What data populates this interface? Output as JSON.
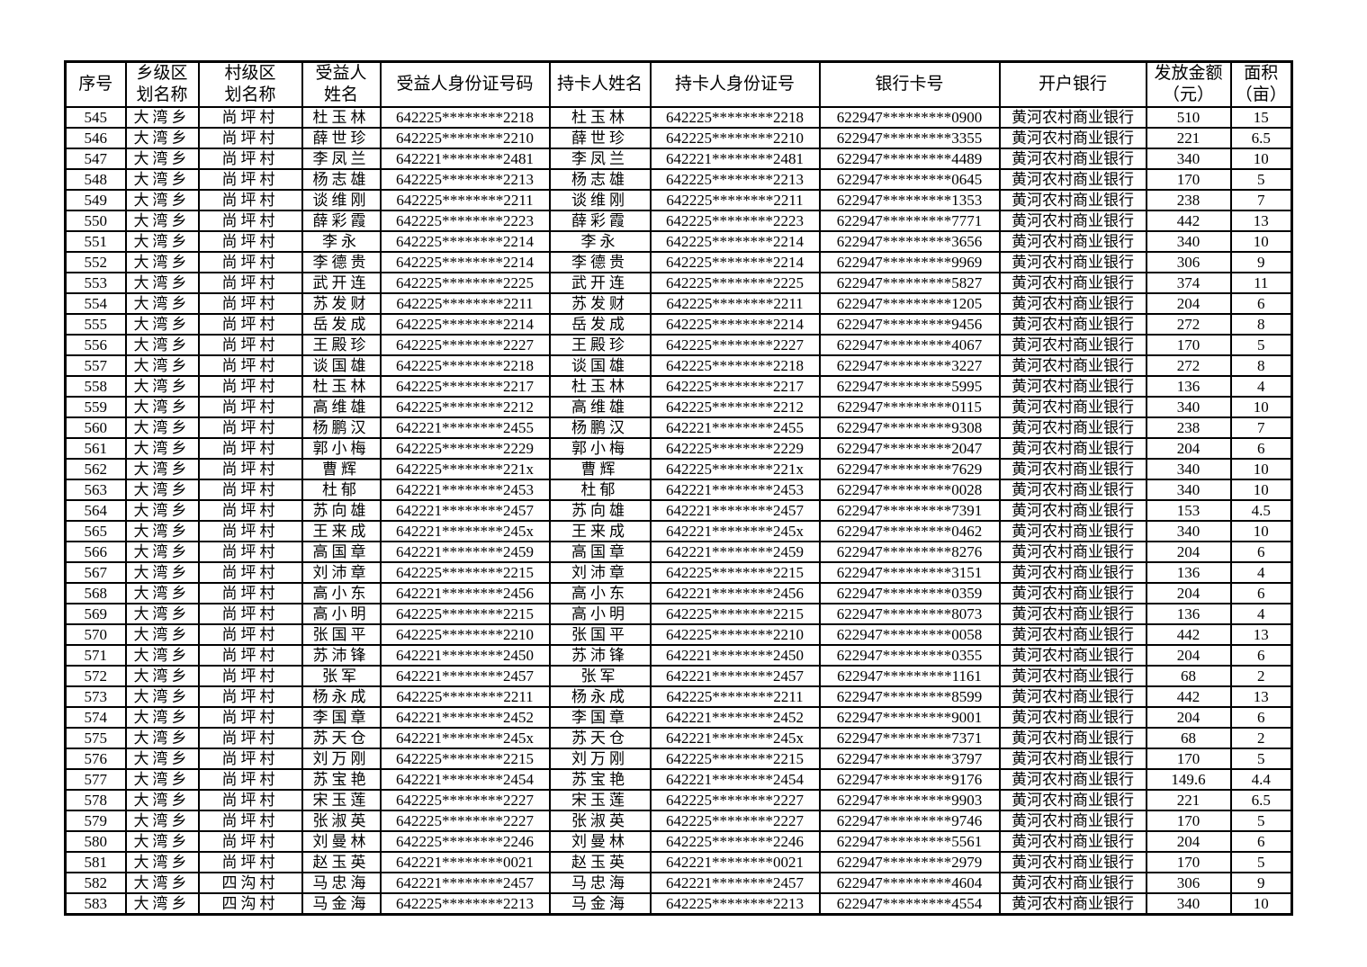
{
  "page": {
    "background": "#ffffff",
    "border_color": "#000000"
  },
  "table": {
    "columns": [
      {
        "key": "serial",
        "label": "序号"
      },
      {
        "key": "township",
        "label": "乡级区\n划名称"
      },
      {
        "key": "village",
        "label": "村级区\n划名称"
      },
      {
        "key": "beneficiary-name",
        "label": "受益人\n姓名"
      },
      {
        "key": "beneficiary-id",
        "label": "受益人身份证号码"
      },
      {
        "key": "cardholder-name",
        "label": "持卡人姓名"
      },
      {
        "key": "cardholder-id",
        "label": "持卡人身份证号"
      },
      {
        "key": "bank-card",
        "label": "银行卡号"
      },
      {
        "key": "bank-name",
        "label": "开户银行"
      },
      {
        "key": "amount",
        "label": "发放金额\n（元）"
      },
      {
        "key": "area",
        "label": "面积\n（亩）"
      }
    ],
    "rows": [
      [
        "545",
        "大湾乡",
        "尚坪村",
        "杜玉林",
        "642225********2218",
        "杜玉林",
        "642225********2218",
        "622947*********0900",
        "黄河农村商业银行",
        "510",
        "15"
      ],
      [
        "546",
        "大湾乡",
        "尚坪村",
        "薛世珍",
        "642225********2210",
        "薛世珍",
        "642225********2210",
        "622947*********3355",
        "黄河农村商业银行",
        "221",
        "6.5"
      ],
      [
        "547",
        "大湾乡",
        "尚坪村",
        "李凤兰",
        "642221********2481",
        "李凤兰",
        "642221********2481",
        "622947*********4489",
        "黄河农村商业银行",
        "340",
        "10"
      ],
      [
        "548",
        "大湾乡",
        "尚坪村",
        "杨志雄",
        "642225********2213",
        "杨志雄",
        "642225********2213",
        "622947*********0645",
        "黄河农村商业银行",
        "170",
        "5"
      ],
      [
        "549",
        "大湾乡",
        "尚坪村",
        "谈维刚",
        "642225********2211",
        "谈维刚",
        "642225********2211",
        "622947*********1353",
        "黄河农村商业银行",
        "238",
        "7"
      ],
      [
        "550",
        "大湾乡",
        "尚坪村",
        "薛彩霞",
        "642225********2223",
        "薛彩霞",
        "642225********2223",
        "622947*********7771",
        "黄河农村商业银行",
        "442",
        "13"
      ],
      [
        "551",
        "大湾乡",
        "尚坪村",
        "李永",
        "642225********2214",
        "李永",
        "642225********2214",
        "622947*********3656",
        "黄河农村商业银行",
        "340",
        "10"
      ],
      [
        "552",
        "大湾乡",
        "尚坪村",
        "李德贵",
        "642225********2214",
        "李德贵",
        "642225********2214",
        "622947*********9969",
        "黄河农村商业银行",
        "306",
        "9"
      ],
      [
        "553",
        "大湾乡",
        "尚坪村",
        "武开连",
        "642225********2225",
        "武开连",
        "642225********2225",
        "622947*********5827",
        "黄河农村商业银行",
        "374",
        "11"
      ],
      [
        "554",
        "大湾乡",
        "尚坪村",
        "苏发财",
        "642225********2211",
        "苏发财",
        "642225********2211",
        "622947*********1205",
        "黄河农村商业银行",
        "204",
        "6"
      ],
      [
        "555",
        "大湾乡",
        "尚坪村",
        "岳发成",
        "642225********2214",
        "岳发成",
        "642225********2214",
        "622947*********9456",
        "黄河农村商业银行",
        "272",
        "8"
      ],
      [
        "556",
        "大湾乡",
        "尚坪村",
        "王殿珍",
        "642225********2227",
        "王殿珍",
        "642225********2227",
        "622947*********4067",
        "黄河农村商业银行",
        "170",
        "5"
      ],
      [
        "557",
        "大湾乡",
        "尚坪村",
        "谈国雄",
        "642225********2218",
        "谈国雄",
        "642225********2218",
        "622947*********3227",
        "黄河农村商业银行",
        "272",
        "8"
      ],
      [
        "558",
        "大湾乡",
        "尚坪村",
        "杜玉林",
        "642225********2217",
        "杜玉林",
        "642225********2217",
        "622947*********5995",
        "黄河农村商业银行",
        "136",
        "4"
      ],
      [
        "559",
        "大湾乡",
        "尚坪村",
        "高维雄",
        "642225********2212",
        "高维雄",
        "642225********2212",
        "622947*********0115",
        "黄河农村商业银行",
        "340",
        "10"
      ],
      [
        "560",
        "大湾乡",
        "尚坪村",
        "杨鹏汉",
        "642221********2455",
        "杨鹏汉",
        "642221********2455",
        "622947*********9308",
        "黄河农村商业银行",
        "238",
        "7"
      ],
      [
        "561",
        "大湾乡",
        "尚坪村",
        "郭小梅",
        "642225********2229",
        "郭小梅",
        "642225********2229",
        "622947*********2047",
        "黄河农村商业银行",
        "204",
        "6"
      ],
      [
        "562",
        "大湾乡",
        "尚坪村",
        "曹辉",
        "642225********221x",
        "曹辉",
        "642225********221x",
        "622947*********7629",
        "黄河农村商业银行",
        "340",
        "10"
      ],
      [
        "563",
        "大湾乡",
        "尚坪村",
        "杜郁",
        "642221********2453",
        "杜郁",
        "642221********2453",
        "622947*********0028",
        "黄河农村商业银行",
        "340",
        "10"
      ],
      [
        "564",
        "大湾乡",
        "尚坪村",
        "苏向雄",
        "642221********2457",
        "苏向雄",
        "642221********2457",
        "622947*********7391",
        "黄河农村商业银行",
        "153",
        "4.5"
      ],
      [
        "565",
        "大湾乡",
        "尚坪村",
        "王来成",
        "642221********245x",
        "王来成",
        "642221********245x",
        "622947*********0462",
        "黄河农村商业银行",
        "340",
        "10"
      ],
      [
        "566",
        "大湾乡",
        "尚坪村",
        "高国章",
        "642221********2459",
        "高国章",
        "642221********2459",
        "622947*********8276",
        "黄河农村商业银行",
        "204",
        "6"
      ],
      [
        "567",
        "大湾乡",
        "尚坪村",
        "刘沛章",
        "642225********2215",
        "刘沛章",
        "642225********2215",
        "622947*********3151",
        "黄河农村商业银行",
        "136",
        "4"
      ],
      [
        "568",
        "大湾乡",
        "尚坪村",
        "高小东",
        "642221********2456",
        "高小东",
        "642221********2456",
        "622947*********0359",
        "黄河农村商业银行",
        "204",
        "6"
      ],
      [
        "569",
        "大湾乡",
        "尚坪村",
        "高小明",
        "642225********2215",
        "高小明",
        "642225********2215",
        "622947*********8073",
        "黄河农村商业银行",
        "136",
        "4"
      ],
      [
        "570",
        "大湾乡",
        "尚坪村",
        "张国平",
        "642225********2210",
        "张国平",
        "642225********2210",
        "622947*********0058",
        "黄河农村商业银行",
        "442",
        "13"
      ],
      [
        "571",
        "大湾乡",
        "尚坪村",
        "苏沛锋",
        "642221********2450",
        "苏沛锋",
        "642221********2450",
        "622947*********0355",
        "黄河农村商业银行",
        "204",
        "6"
      ],
      [
        "572",
        "大湾乡",
        "尚坪村",
        "张军",
        "642221********2457",
        "张军",
        "642221********2457",
        "622947*********1161",
        "黄河农村商业银行",
        "68",
        "2"
      ],
      [
        "573",
        "大湾乡",
        "尚坪村",
        "杨永成",
        "642225********2211",
        "杨永成",
        "642225********2211",
        "622947*********8599",
        "黄河农村商业银行",
        "442",
        "13"
      ],
      [
        "574",
        "大湾乡",
        "尚坪村",
        "李国章",
        "642221********2452",
        "李国章",
        "642221********2452",
        "622947*********9001",
        "黄河农村商业银行",
        "204",
        "6"
      ],
      [
        "575",
        "大湾乡",
        "尚坪村",
        "苏天仓",
        "642221********245x",
        "苏天仓",
        "642221********245x",
        "622947*********7371",
        "黄河农村商业银行",
        "68",
        "2"
      ],
      [
        "576",
        "大湾乡",
        "尚坪村",
        "刘万刚",
        "642225********2215",
        "刘万刚",
        "642225********2215",
        "622947*********3797",
        "黄河农村商业银行",
        "170",
        "5"
      ],
      [
        "577",
        "大湾乡",
        "尚坪村",
        "苏宝艳",
        "642221********2454",
        "苏宝艳",
        "642221********2454",
        "622947*********9176",
        "黄河农村商业银行",
        "149.6",
        "4.4"
      ],
      [
        "578",
        "大湾乡",
        "尚坪村",
        "宋玉莲",
        "642225********2227",
        "宋玉莲",
        "642225********2227",
        "622947*********9903",
        "黄河农村商业银行",
        "221",
        "6.5"
      ],
      [
        "579",
        "大湾乡",
        "尚坪村",
        "张淑英",
        "642225********2227",
        "张淑英",
        "642225********2227",
        "622947*********9746",
        "黄河农村商业银行",
        "170",
        "5"
      ],
      [
        "580",
        "大湾乡",
        "尚坪村",
        "刘曼林",
        "642225********2246",
        "刘曼林",
        "642225********2246",
        "622947*********5561",
        "黄河农村商业银行",
        "204",
        "6"
      ],
      [
        "581",
        "大湾乡",
        "尚坪村",
        "赵玉英",
        "642221********0021",
        "赵玉英",
        "642221********0021",
        "622947*********2979",
        "黄河农村商业银行",
        "170",
        "5"
      ],
      [
        "582",
        "大湾乡",
        "四沟村",
        "马忠海",
        "642221********2457",
        "马忠海",
        "642221********2457",
        "622947*********4604",
        "黄河农村商业银行",
        "306",
        "9"
      ],
      [
        "583",
        "大湾乡",
        "四沟村",
        "马金海",
        "642225********2213",
        "马金海",
        "642225********2213",
        "622947*********4554",
        "黄河农村商业银行",
        "340",
        "10"
      ]
    ]
  }
}
